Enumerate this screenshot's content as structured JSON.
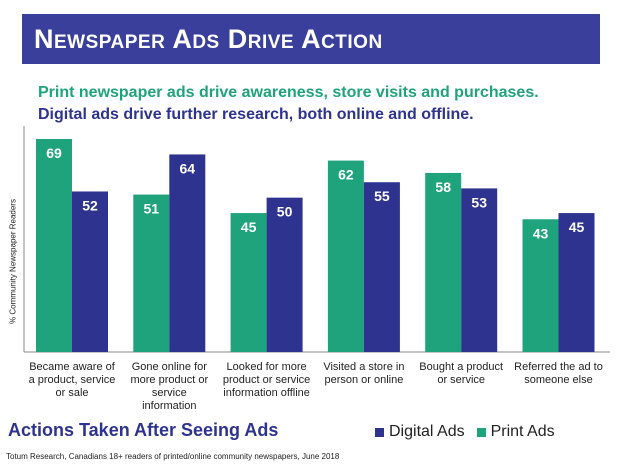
{
  "banner_title": "Newspaper Ads Drive Action",
  "subtitle_print": "Print newspaper ads drive awareness, store visits and purchases.",
  "subtitle_digital": "Digital ads drive further research, both online and offline.",
  "actions_title": "Actions Taken After Seeing Ads",
  "source": "Totum Research, Canadians 18+ readers of printed/online community newspapers, June 2018",
  "colors": {
    "banner": "#3a3f9c",
    "print": "#1fa37c",
    "digital": "#2e338f"
  },
  "chart_data": {
    "type": "bar",
    "ylabel": "% Community Newspaper Readers",
    "xlabel": "",
    "ylim": [
      0,
      75
    ],
    "grid": false,
    "legend_position": "bottom-right",
    "legend": [
      "Digital Ads",
      "Print Ads"
    ],
    "categories": [
      [
        "Became aware of",
        "a product, service",
        "or sale"
      ],
      [
        "Gone online for",
        "more product or",
        "service",
        "information"
      ],
      [
        "Looked for more",
        "product or service",
        "information offline"
      ],
      [
        "Visited a store in",
        "person or online"
      ],
      [
        "Bought a product",
        "or service"
      ],
      [
        "Referred the ad to",
        "someone else"
      ]
    ],
    "series": [
      {
        "name": "Print Ads",
        "color": "#1fa37c",
        "values": [
          69,
          51,
          45,
          62,
          58,
          43
        ]
      },
      {
        "name": "Digital Ads",
        "color": "#2e338f",
        "values": [
          52,
          64,
          50,
          55,
          53,
          45
        ]
      }
    ]
  }
}
